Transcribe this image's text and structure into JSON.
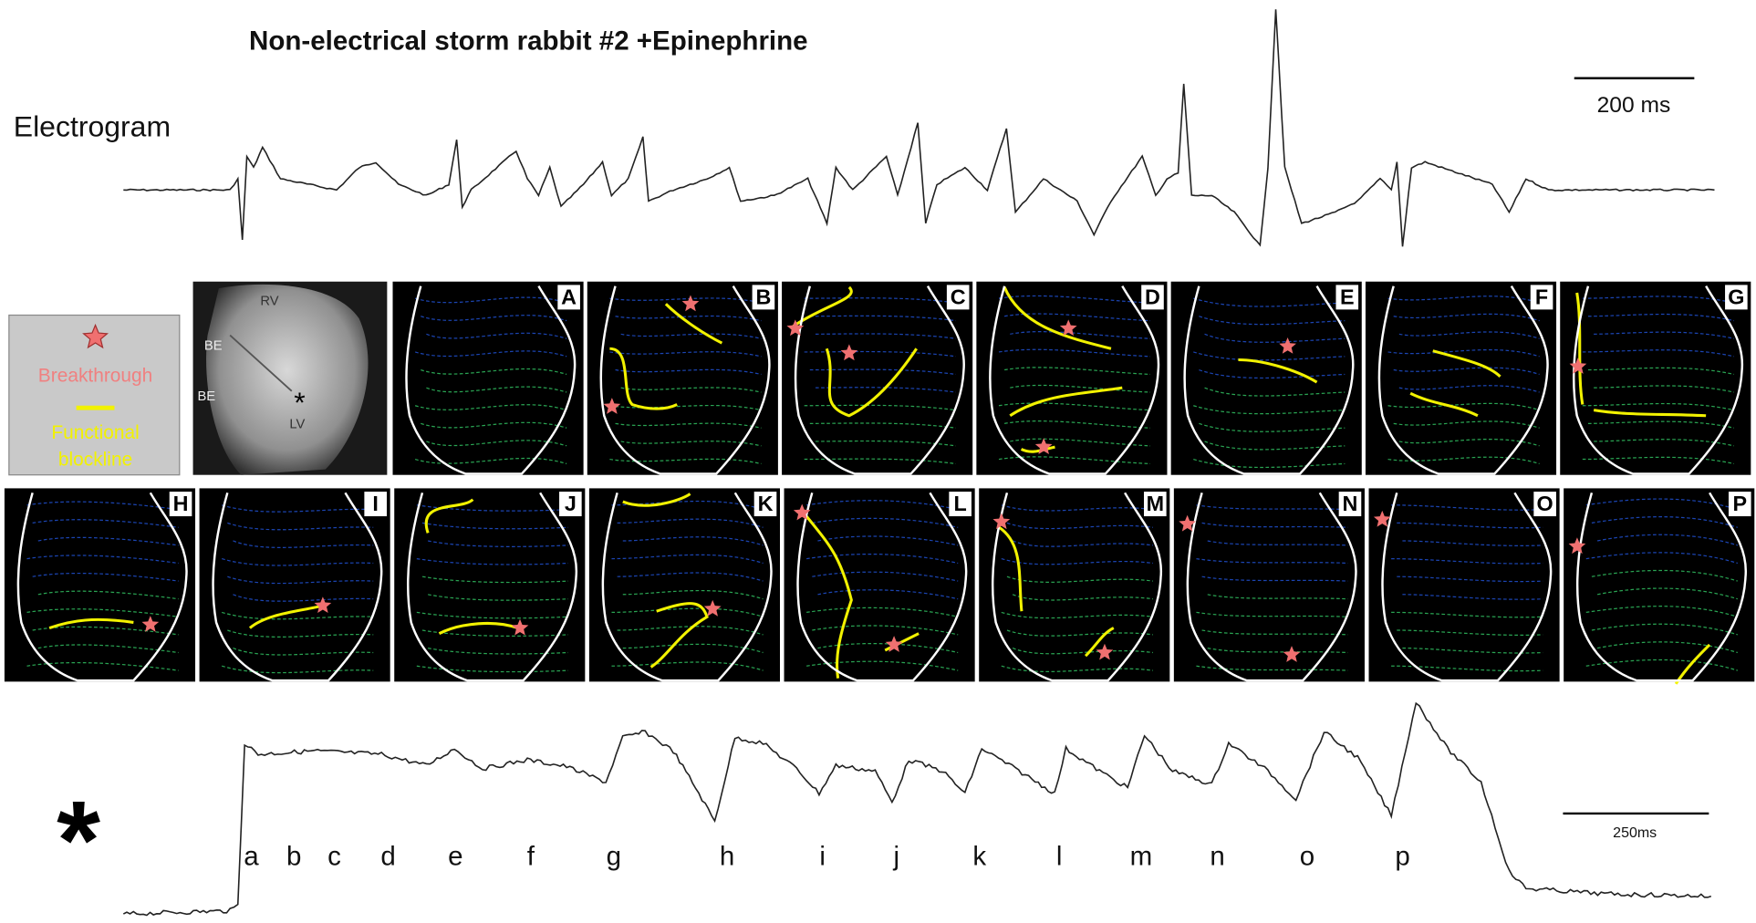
{
  "title": "Non-electrical storm rabbit #2 +Epinephrine",
  "electrogram": {
    "label": "Electrogram",
    "scale_bar": "200 ms"
  },
  "legend": {
    "breakthrough": "Breakthrough",
    "blockline": [
      "Functional",
      "blockline"
    ]
  },
  "photo": {
    "labels": [
      "RV",
      "BE",
      "BE",
      "LV",
      "*"
    ]
  },
  "panels": [
    "A",
    "B",
    "C",
    "D",
    "E",
    "F",
    "G",
    "H",
    "I",
    "J",
    "K",
    "L",
    "M",
    "N",
    "O",
    "P"
  ],
  "optical": {
    "marker": "*",
    "scale_bar": "250ms",
    "beats": [
      "a",
      "b",
      "c",
      "d",
      "e",
      "f",
      "g",
      "h",
      "i",
      "j",
      "k",
      "l",
      "m",
      "n",
      "o",
      "p"
    ]
  }
}
